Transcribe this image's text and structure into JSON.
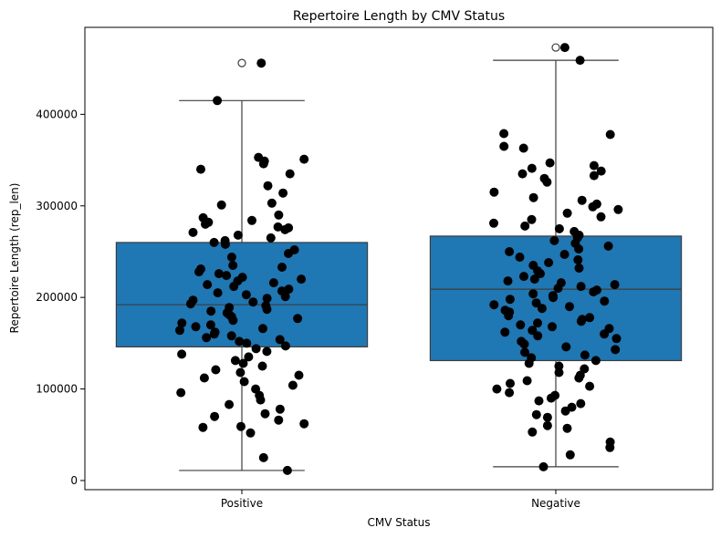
{
  "chart_data": {
    "type": "box",
    "title": "Repertoire Length by CMV Status",
    "xlabel": "CMV Status",
    "ylabel": "Repertoire Length (rep_len)",
    "ylim": [
      -10000,
      495000
    ],
    "yticks": [
      0,
      100000,
      200000,
      300000,
      400000
    ],
    "yticks_labels": [
      "0",
      "100000",
      "200000",
      "300000",
      "400000"
    ],
    "categories": [
      "Positive",
      "Negative"
    ],
    "box_color": "#1f77b4",
    "point_color": "#000000",
    "boxes": [
      {
        "name": "Positive",
        "whisker_low": 11000,
        "q1": 146000,
        "median": 192000,
        "q3": 260000,
        "whisker_high": 415000,
        "outliers": [
          456000
        ]
      },
      {
        "name": "Negative",
        "whisker_low": 15000,
        "q1": 131000,
        "median": 209000,
        "q3": 267000,
        "whisker_high": 459000,
        "outliers": [
          473000
        ]
      }
    ],
    "points": [
      {
        "category": "Positive",
        "values": [
          456000,
          415000,
          353000,
          351000,
          349000,
          346000,
          340000,
          335000,
          322000,
          314000,
          303000,
          301000,
          290000,
          287000,
          284000,
          282000,
          280000,
          277000,
          276000,
          274000,
          271000,
          268000,
          265000,
          262000,
          260000,
          258000,
          252000,
          248000,
          244000,
          235000,
          233000,
          231000,
          228000,
          226000,
          224000,
          222000,
          220000,
          218000,
          216000,
          214000,
          212000,
          209000,
          207000,
          205000,
          203000,
          201000,
          199000,
          197000,
          195000,
          193000,
          191000,
          189000,
          187000,
          185000,
          183000,
          181000,
          179000,
          177000,
          175000,
          172000,
          170000,
          168000,
          166000,
          164000,
          162000,
          160000,
          158000,
          156000,
          154000,
          152000,
          150000,
          147000,
          144000,
          141000,
          138000,
          135000,
          131000,
          128000,
          125000,
          121000,
          118000,
          115000,
          112000,
          108000,
          104000,
          100000,
          96000,
          93000,
          88000,
          83000,
          78000,
          73000,
          70000,
          66000,
          62000,
          59000,
          58000,
          52000,
          25000,
          11000
        ]
      },
      {
        "category": "Negative",
        "values": [
          473000,
          459000,
          379000,
          378000,
          365000,
          363000,
          347000,
          344000,
          341000,
          338000,
          335000,
          333000,
          330000,
          326000,
          315000,
          309000,
          306000,
          302000,
          299000,
          296000,
          292000,
          288000,
          285000,
          281000,
          278000,
          275000,
          272000,
          268000,
          265000,
          262000,
          259000,
          256000,
          253000,
          250000,
          247000,
          244000,
          241000,
          238000,
          235000,
          232000,
          229000,
          226000,
          223000,
          220000,
          218000,
          216000,
          214000,
          212000,
          210000,
          208000,
          206000,
          204000,
          202000,
          200000,
          198000,
          196000,
          194000,
          192000,
          190000,
          188000,
          186000,
          184000,
          182000,
          180000,
          178000,
          176000,
          174000,
          172000,
          170000,
          168000,
          166000,
          164000,
          162000,
          160000,
          158000,
          155000,
          152000,
          149000,
          146000,
          143000,
          140000,
          137000,
          134000,
          131000,
          128000,
          125000,
          122000,
          118000,
          115000,
          112000,
          109000,
          106000,
          103000,
          100000,
          96000,
          93000,
          90000,
          87000,
          84000,
          80000,
          76000,
          72000,
          69000,
          60000,
          57000,
          53000,
          42000,
          36000,
          28000,
          15000
        ]
      }
    ]
  }
}
